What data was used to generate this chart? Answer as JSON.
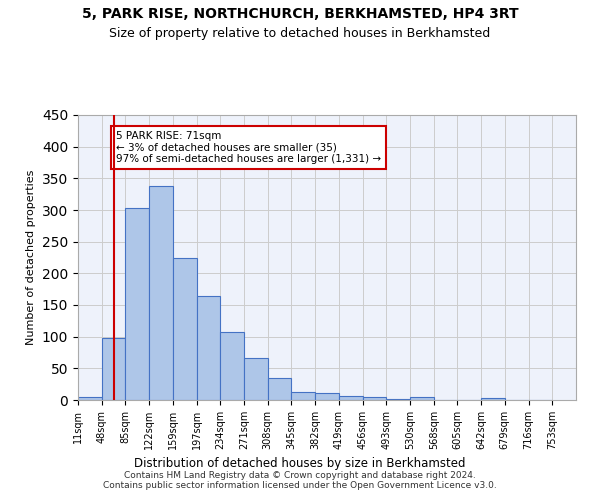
{
  "title": "5, PARK RISE, NORTHCHURCH, BERKHAMSTED, HP4 3RT",
  "subtitle": "Size of property relative to detached houses in Berkhamsted",
  "xlabel": "Distribution of detached houses by size in Berkhamsted",
  "ylabel": "Number of detached properties",
  "bar_values": [
    5,
    98,
    303,
    338,
    225,
    164,
    108,
    67,
    34,
    12,
    11,
    7,
    5,
    1,
    5,
    0,
    0,
    3,
    0,
    0
  ],
  "bin_labels": [
    "11sqm",
    "48sqm",
    "85sqm",
    "122sqm",
    "159sqm",
    "197sqm",
    "234sqm",
    "271sqm",
    "308sqm",
    "345sqm",
    "382sqm",
    "419sqm",
    "456sqm",
    "493sqm",
    "530sqm",
    "568sqm",
    "605sqm",
    "642sqm",
    "679sqm",
    "716sqm",
    "753sqm"
  ],
  "bar_color": "#aec6e8",
  "bar_edge_color": "#4472c4",
  "marker_line_color": "#cc0000",
  "annotation_text": "5 PARK RISE: 71sqm\n← 3% of detached houses are smaller (35)\n97% of semi-detached houses are larger (1,331) →",
  "annotation_box_color": "#ffffff",
  "annotation_box_edge": "#cc0000",
  "ylim": [
    0,
    450
  ],
  "background_color": "#eef2fb",
  "footer": "Contains HM Land Registry data © Crown copyright and database right 2024.\nContains public sector information licensed under the Open Government Licence v3.0."
}
